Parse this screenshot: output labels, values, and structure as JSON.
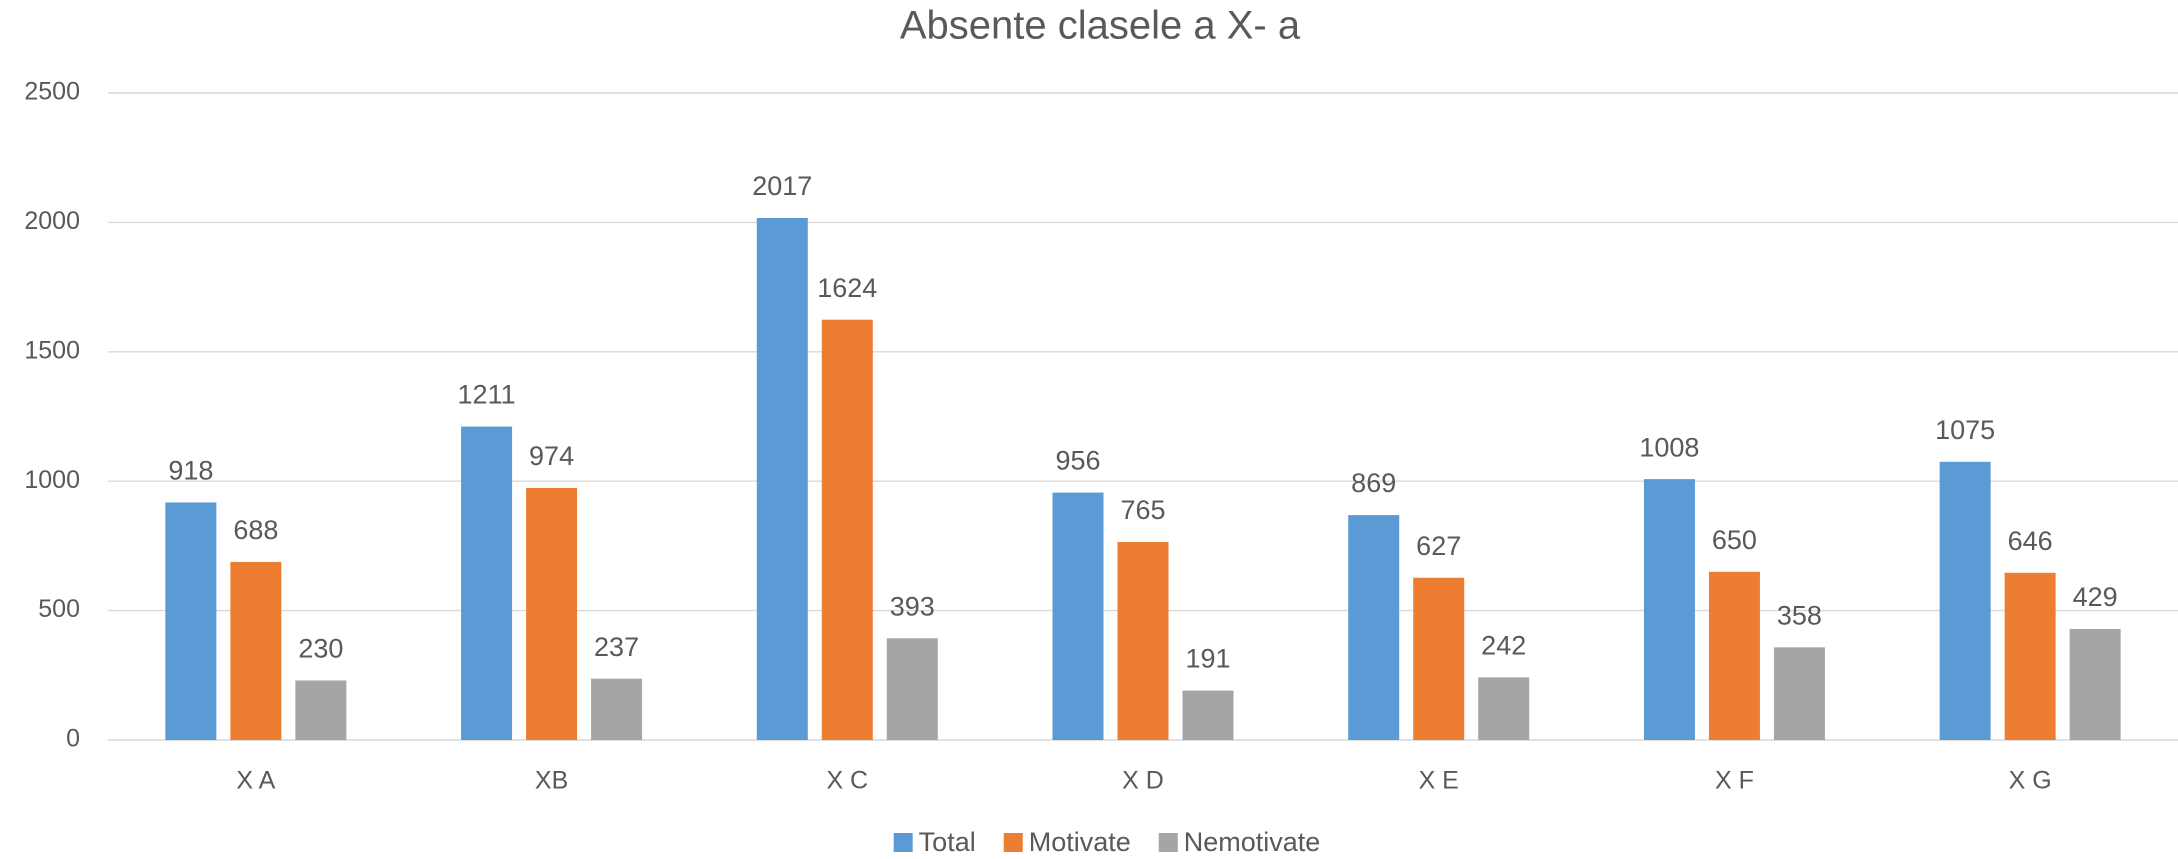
{
  "chart_data": {
    "type": "bar",
    "title": "Absente clasele a X- a",
    "categories": [
      "X A",
      "XB",
      "X C",
      "X D",
      "X E",
      "X F",
      "X G"
    ],
    "series": [
      {
        "name": "Total",
        "color": "#5b9bd5",
        "values": [
          918,
          1211,
          2017,
          956,
          869,
          1008,
          1075
        ]
      },
      {
        "name": "Motivate",
        "color": "#ed7d31",
        "values": [
          688,
          974,
          1624,
          765,
          627,
          650,
          646
        ]
      },
      {
        "name": "Nemotivate",
        "color": "#a5a5a5",
        "values": [
          230,
          237,
          393,
          191,
          242,
          358,
          429
        ]
      }
    ],
    "ylim": [
      0,
      2500
    ],
    "yticks": [
      0,
      500,
      1000,
      1500,
      2000,
      2500
    ],
    "grid": true,
    "legend": "bottom"
  }
}
